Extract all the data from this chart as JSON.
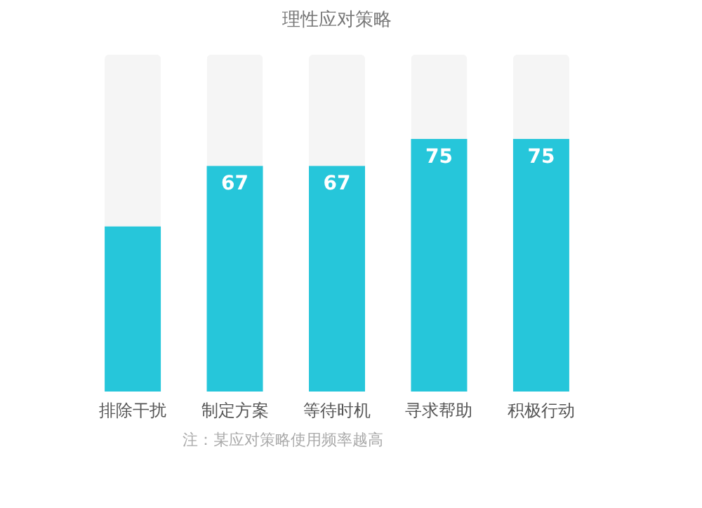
{
  "chart_data": {
    "type": "bar",
    "title": "理性应对策略",
    "categories": [
      "排除干扰",
      "制定方案",
      "等待时机",
      "寻求帮助",
      "积极行动"
    ],
    "values": [
      49,
      67,
      67,
      75,
      75
    ],
    "color": "#26c6da",
    "value_labels": [
      null,
      "67",
      "67",
      "75",
      "75"
    ],
    "ylim": [
      0,
      100
    ],
    "tick_labels": "x",
    "grid": false,
    "annotations": [
      "注：某应对策略使用频率越高"
    ]
  }
}
